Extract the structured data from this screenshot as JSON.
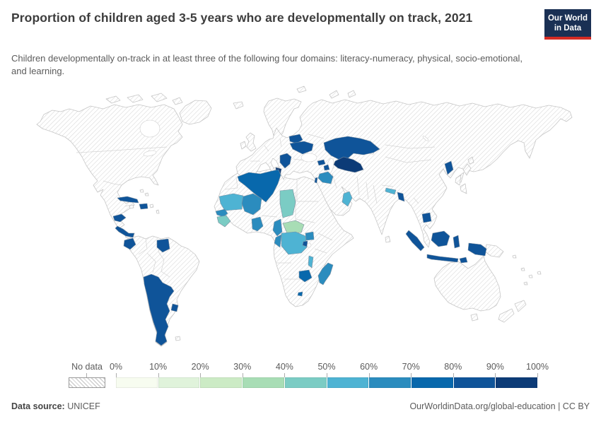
{
  "header": {
    "title": "Proportion of children aged 3-5 years who are developmentally on track, 2021",
    "subtitle": "Children developmentally on-track in at least three of the following four domains: literacy-numeracy, physical, socio-emotional, and learning."
  },
  "logo": {
    "line1": "Our World",
    "line2": "in Data",
    "bg_color": "#1a3054",
    "accent_color": "#d42b24"
  },
  "legend": {
    "no_data_label": "No data",
    "tick_labels": [
      "0%",
      "10%",
      "20%",
      "30%",
      "40%",
      "50%",
      "60%",
      "70%",
      "80%",
      "90%",
      "100%"
    ],
    "bins": [
      {
        "range": "0-10%",
        "color": "#f7fcf0"
      },
      {
        "range": "10-20%",
        "color": "#e0f3db"
      },
      {
        "range": "20-30%",
        "color": "#ccebc5"
      },
      {
        "range": "30-40%",
        "color": "#a8ddb5"
      },
      {
        "range": "40-50%",
        "color": "#7bccc4"
      },
      {
        "range": "50-60%",
        "color": "#4eb3d3"
      },
      {
        "range": "60-70%",
        "color": "#2b8cbe"
      },
      {
        "range": "70-80%",
        "color": "#0868ac"
      },
      {
        "range": "80-90%",
        "color": "#0f5499"
      },
      {
        "range": "90-100%",
        "color": "#0c3b77"
      }
    ]
  },
  "map": {
    "countries": {
      "cuba": {
        "name": "Cuba",
        "bin": 8
      },
      "dominican-republic": {
        "name": "Dominican Republic",
        "bin": 8
      },
      "honduras": {
        "name": "Honduras",
        "bin": 8
      },
      "costa-rica-panama": {
        "name": "Costa Rica / Panama",
        "bin": 8
      },
      "ecuador": {
        "name": "Ecuador",
        "bin": 8
      },
      "guyana-suriname": {
        "name": "Guyana / Suriname",
        "bin": 8
      },
      "argentina-chile": {
        "name": "Argentina / Chile",
        "bin": 8
      },
      "uruguay": {
        "name": "Uruguay",
        "bin": 8
      },
      "belarus": {
        "name": "Belarus",
        "bin": 8
      },
      "ukraine": {
        "name": "Ukraine",
        "bin": 8
      },
      "serbia-balkans": {
        "name": "Serbia / North Macedonia / Montenegro",
        "bin": 8
      },
      "georgia": {
        "name": "Georgia",
        "bin": 8
      },
      "azerbaijan": {
        "name": "Azerbaijan",
        "bin": 8
      },
      "kazakhstan": {
        "name": "Kazakhstan",
        "bin": 8
      },
      "turkmenistan-uzbekistan": {
        "name": "Turkmenistan / Uzbekistan",
        "bin": 9
      },
      "tunisia": {
        "name": "Tunisia",
        "bin": 9
      },
      "algeria": {
        "name": "Algeria",
        "bin": 7
      },
      "mauritania": {
        "name": "Mauritania",
        "bin": 5
      },
      "mali": {
        "name": "Mali",
        "bin": 6
      },
      "senegal": {
        "name": "Senegal",
        "bin": 6
      },
      "guinea-sierra-leone": {
        "name": "Guinea / Sierra Leone",
        "bin": 4
      },
      "ghana-togo-benin": {
        "name": "Ghana / Togo / Benin",
        "bin": 6
      },
      "chad": {
        "name": "Chad",
        "bin": 4
      },
      "central-african-republic": {
        "name": "Central African Republic",
        "bin": 3
      },
      "cameroon": {
        "name": "Cameroon",
        "bin": 6
      },
      "congo": {
        "name": "Congo",
        "bin": 6
      },
      "dr-congo": {
        "name": "Democratic Republic of Congo",
        "bin": 5
      },
      "uganda": {
        "name": "Uganda",
        "bin": 6
      },
      "rwanda-burundi": {
        "name": "Rwanda / Burundi",
        "bin": 8
      },
      "malawi": {
        "name": "Malawi",
        "bin": 5
      },
      "zimbabwe": {
        "name": "Zimbabwe",
        "bin": 7
      },
      "lesotho": {
        "name": "Lesotho",
        "bin": 7
      },
      "madagascar": {
        "name": "Madagascar",
        "bin": 6
      },
      "palestine": {
        "name": "Palestine",
        "bin": 8
      },
      "iraq": {
        "name": "Iraq",
        "bin": 6
      },
      "oman": {
        "name": "Oman",
        "bin": 5
      },
      "nepal": {
        "name": "Nepal",
        "bin": 5
      },
      "bangladesh": {
        "name": "Bangladesh",
        "bin": 8
      },
      "north-korea": {
        "name": "North Korea",
        "bin": 8
      },
      "cambodia": {
        "name": "Cambodia",
        "bin": 8
      },
      "indonesia": {
        "name": "Indonesia",
        "bin": 8
      },
      "timor-leste": {
        "name": "Timor-Leste",
        "bin": 8
      }
    }
  },
  "footer": {
    "source_label": "Data source:",
    "source_value": "UNICEF",
    "link": "OurWorldinData.org/global-education",
    "separator": " | ",
    "license": "CC BY"
  }
}
